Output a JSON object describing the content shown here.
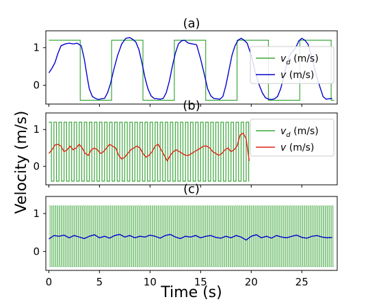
{
  "chart_data": {
    "type": "line",
    "ylabel": "Velocity (m/s)",
    "xlabel": "Time (s)",
    "xticks": [
      0,
      5,
      10,
      15,
      20,
      25
    ],
    "yticks": [
      0,
      1
    ],
    "colors": {
      "reference": "#3aa63a",
      "measured_a": "#0000cc",
      "measured_b": "#dd2211",
      "measured_c": "#0000cc"
    },
    "panels": [
      {
        "title": "(a)",
        "xlim": [
          -0.3,
          28.5
        ],
        "ylim": [
          -0.5,
          1.45
        ],
        "legend": [
          "v_d (m/s)",
          "v (m/s)"
        ],
        "legend_placement": "right",
        "reference": {
          "low": -0.4,
          "high": 1.2,
          "period": 6.2,
          "start": 0,
          "end": 28.2
        },
        "measured": {
          "x": [
            0,
            0.3,
            0.6,
            0.9,
            1.2,
            1.6,
            2.0,
            2.4,
            2.8,
            3.2,
            3.5,
            3.8,
            4.0,
            4.3,
            4.6,
            4.9,
            5.2,
            5.5,
            5.8,
            6.1,
            6.4,
            6.8,
            7.2,
            7.6,
            8.0,
            8.3,
            8.6,
            8.9,
            9.2,
            9.5,
            9.8,
            10.1,
            10.4,
            10.7,
            11.0,
            11.3,
            11.6,
            11.9,
            12.2,
            12.5,
            12.8,
            13.1,
            13.4,
            13.8,
            14.2,
            14.6,
            15.0,
            15.4,
            15.7,
            16.0,
            16.3,
            16.6,
            16.9,
            17.2,
            17.5,
            17.8,
            18.1,
            18.4,
            18.7,
            19.0,
            19.3,
            19.6,
            20.0,
            20.4,
            20.8,
            21.1,
            21.4,
            21.7,
            22.0,
            22.3,
            22.6,
            22.9,
            23.2,
            23.5,
            23.8,
            24.1,
            24.4,
            24.7,
            25.0,
            25.3,
            25.6,
            26.0,
            26.4,
            26.8,
            27.1,
            27.4,
            27.7,
            28.0
          ],
          "y": [
            0.33,
            0.45,
            0.6,
            0.85,
            1.05,
            1.1,
            1.12,
            1.1,
            1.12,
            1.05,
            0.7,
            0.2,
            -0.1,
            -0.3,
            -0.35,
            -0.38,
            -0.36,
            -0.35,
            -0.2,
            0.05,
            0.4,
            0.8,
            1.1,
            1.25,
            1.27,
            1.22,
            1.15,
            0.95,
            0.6,
            0.2,
            -0.1,
            -0.28,
            -0.35,
            -0.36,
            -0.37,
            -0.35,
            -0.2,
            0.1,
            0.5,
            0.85,
            1.1,
            1.18,
            1.2,
            1.12,
            1.1,
            1.08,
            0.7,
            0.25,
            -0.1,
            -0.28,
            -0.35,
            -0.36,
            -0.37,
            -0.3,
            0.0,
            0.4,
            0.8,
            1.05,
            1.2,
            1.25,
            1.2,
            1.12,
            0.8,
            0.35,
            0.0,
            -0.2,
            -0.33,
            -0.37,
            -0.38,
            -0.36,
            -0.3,
            -0.1,
            0.2,
            0.55,
            0.8,
            0.9,
            1.0,
            1.18,
            1.25,
            1.2,
            1.1,
            0.75,
            0.3,
            -0.05,
            -0.3,
            -0.37,
            -0.36,
            -0.35
          ]
        }
      },
      {
        "title": "(b)",
        "xlim": [
          -0.3,
          28.5
        ],
        "ylim": [
          -0.5,
          1.45
        ],
        "legend": [
          "v_d (m/s)",
          "v (m/s)"
        ],
        "legend_placement": "right",
        "reference": {
          "low": -0.4,
          "high": 1.2,
          "period": 0.5,
          "start": 0,
          "end": 19.8
        },
        "measured": {
          "x": [
            0,
            0.3,
            0.6,
            0.9,
            1.2,
            1.5,
            1.8,
            2.1,
            2.4,
            2.7,
            3.0,
            3.3,
            3.6,
            3.9,
            4.2,
            4.5,
            4.8,
            5.1,
            5.4,
            5.7,
            6.0,
            6.3,
            6.6,
            6.9,
            7.2,
            7.5,
            7.8,
            8.1,
            8.4,
            8.7,
            9.0,
            9.3,
            9.6,
            9.9,
            10.2,
            10.5,
            10.8,
            11.1,
            11.4,
            11.7,
            12.0,
            12.3,
            12.6,
            12.9,
            13.2,
            13.5,
            13.8,
            14.1,
            14.4,
            14.7,
            15.0,
            15.3,
            15.6,
            15.9,
            16.2,
            16.5,
            16.8,
            17.1,
            17.4,
            17.7,
            18.0,
            18.3,
            18.6,
            18.9,
            19.2,
            19.5,
            19.8
          ],
          "y": [
            0.35,
            0.45,
            0.58,
            0.6,
            0.55,
            0.4,
            0.45,
            0.55,
            0.45,
            0.5,
            0.6,
            0.5,
            0.35,
            0.3,
            0.45,
            0.5,
            0.45,
            0.35,
            0.4,
            0.5,
            0.6,
            0.55,
            0.5,
            0.3,
            0.2,
            0.25,
            0.35,
            0.45,
            0.5,
            0.55,
            0.5,
            0.35,
            0.25,
            0.3,
            0.4,
            0.55,
            0.6,
            0.45,
            0.3,
            0.15,
            0.3,
            0.4,
            0.45,
            0.4,
            0.35,
            0.3,
            0.3,
            0.35,
            0.4,
            0.45,
            0.5,
            0.55,
            0.55,
            0.5,
            0.4,
            0.35,
            0.3,
            0.35,
            0.45,
            0.5,
            0.4,
            0.45,
            0.55,
            0.85,
            0.9,
            0.75,
            0.15
          ]
        }
      },
      {
        "title": "(c)",
        "xlim": [
          -0.3,
          28.5
        ],
        "ylim": [
          -0.5,
          1.45
        ],
        "legend": [],
        "reference": {
          "low": -0.4,
          "high": 1.2,
          "period": 0.2,
          "start": 0,
          "end": 28.2
        },
        "measured": {
          "x": [
            0,
            0.5,
            1.0,
            1.5,
            2.0,
            2.5,
            3.0,
            3.5,
            4.0,
            4.5,
            5.0,
            5.5,
            6.0,
            6.5,
            7.0,
            7.5,
            8.0,
            8.5,
            9.0,
            9.5,
            10.0,
            10.5,
            11.0,
            11.5,
            12.0,
            12.5,
            13.0,
            13.5,
            14.0,
            14.5,
            15.0,
            15.5,
            16.0,
            16.5,
            17.0,
            17.5,
            18.0,
            18.5,
            19.0,
            19.5,
            20.0,
            20.5,
            21.0,
            21.5,
            22.0,
            22.5,
            23.0,
            23.5,
            24.0,
            24.5,
            25.0,
            25.5,
            26.0,
            26.5,
            27.0,
            27.5,
            28.0
          ],
          "y": [
            0.33,
            0.42,
            0.4,
            0.43,
            0.36,
            0.42,
            0.38,
            0.34,
            0.4,
            0.44,
            0.36,
            0.4,
            0.35,
            0.42,
            0.45,
            0.38,
            0.42,
            0.36,
            0.4,
            0.38,
            0.43,
            0.4,
            0.35,
            0.42,
            0.45,
            0.38,
            0.34,
            0.4,
            0.38,
            0.42,
            0.36,
            0.4,
            0.42,
            0.37,
            0.35,
            0.4,
            0.36,
            0.42,
            0.38,
            0.3,
            0.4,
            0.44,
            0.36,
            0.4,
            0.35,
            0.42,
            0.38,
            0.36,
            0.4,
            0.43,
            0.37,
            0.35,
            0.4,
            0.42,
            0.38,
            0.36,
            0.37
          ]
        }
      }
    ]
  }
}
